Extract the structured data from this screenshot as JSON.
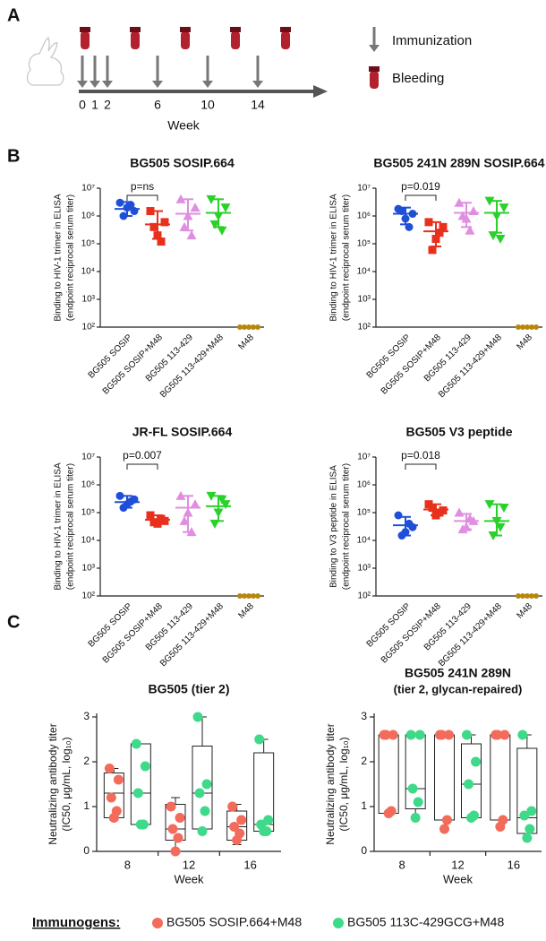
{
  "panel_labels": [
    "A",
    "B",
    "C"
  ],
  "panel_a": {
    "immunization_weeks": [
      0,
      1,
      2,
      6,
      10,
      14
    ],
    "bleeding_weeks": [
      0,
      4,
      8,
      12,
      16
    ],
    "xlabel": "Week",
    "legend": [
      "Immunization",
      "Bleeding"
    ]
  },
  "chart_data": [
    {
      "type": "dot",
      "title": "BG505 SOSIP.664",
      "ylabel": [
        "Binding to HIV-1 trimer in ELISA",
        "(endpoint reciprocal serum titer)"
      ],
      "log_y": true,
      "ylim": [
        100,
        10000000
      ],
      "yticks": [
        {
          "value": 100,
          "label": "10²"
        },
        {
          "value": 1000,
          "label": "10³"
        },
        {
          "value": 10000,
          "label": "10⁴"
        },
        {
          "value": 100000,
          "label": "10⁵"
        },
        {
          "value": 1000000,
          "label": "10⁶"
        },
        {
          "value": 10000000,
          "label": "10⁷"
        }
      ],
      "categories": [
        "BG505 SOSIP",
        "BG505 SOSIP+M48",
        "BG505 113-429",
        "BG505 113-429+M48",
        "M48"
      ],
      "groups": [
        {
          "color": "#1f4fd8",
          "marker": "circle",
          "values": [
            3000000,
            1500000,
            2000000,
            1000000,
            2500000
          ],
          "mean": 1800000,
          "error": [
            1000000,
            3200000
          ]
        },
        {
          "color": "#e8301c",
          "marker": "square",
          "values": [
            1500000,
            600000,
            200000,
            400000,
            120000
          ],
          "mean": 500000,
          "error": [
            150000,
            1500000
          ]
        },
        {
          "color": "#e08ee0",
          "marker": "triangle-up",
          "values": [
            4000000,
            2000000,
            1000000,
            400000,
            200000
          ],
          "mean": 1200000,
          "error": [
            300000,
            4000000
          ]
        },
        {
          "color": "#2bd12b",
          "marker": "triangle-down",
          "values": [
            4000000,
            2000000,
            1000000,
            500000,
            300000
          ],
          "mean": 1300000,
          "error": [
            400000,
            4000000
          ]
        },
        {
          "color": "#b8860b",
          "marker": "circle",
          "values": [
            100,
            100,
            100,
            100,
            100
          ]
        }
      ],
      "annotation": "p=ns"
    },
    {
      "type": "dot",
      "title": "BG505 241N 289N SOSIP.664",
      "ylabel": [
        "Binding to HIV-1 trimer in ELISA",
        "(endpoint reciprocal serum titer)"
      ],
      "log_y": true,
      "ylim": [
        100,
        10000000
      ],
      "yticks": [
        {
          "value": 100,
          "label": "10²"
        },
        {
          "value": 1000,
          "label": "10³"
        },
        {
          "value": 10000,
          "label": "10⁴"
        },
        {
          "value": 100000,
          "label": "10⁵"
        },
        {
          "value": 1000000,
          "label": "10⁶"
        },
        {
          "value": 10000000,
          "label": "10⁷"
        }
      ],
      "categories": [
        "BG505 SOSIP",
        "BG505 SOSIP+M48",
        "BG505 113-429",
        "BG505 113-429+M48",
        "M48"
      ],
      "groups": [
        {
          "color": "#1f4fd8",
          "marker": "circle",
          "values": [
            1800000,
            1200000,
            800000,
            1500000,
            400000
          ],
          "mean": 1200000,
          "error": [
            500000,
            2000000
          ]
        },
        {
          "color": "#e8301c",
          "marker": "square",
          "values": [
            600000,
            400000,
            150000,
            60000,
            250000
          ],
          "mean": 280000,
          "error": [
            80000,
            600000
          ]
        },
        {
          "color": "#e08ee0",
          "marker": "triangle-up",
          "values": [
            3000000,
            1500000,
            800000,
            1000000,
            300000
          ],
          "mean": 1300000,
          "error": [
            400000,
            3000000
          ]
        },
        {
          "color": "#2bd12b",
          "marker": "triangle-down",
          "values": [
            3500000,
            2000000,
            1000000,
            200000,
            150000
          ],
          "mean": 1300000,
          "error": [
            250000,
            3500000
          ]
        },
        {
          "color": "#b8860b",
          "marker": "circle",
          "values": [
            100,
            100,
            100,
            100,
            100
          ]
        }
      ],
      "annotation": "p=0.019"
    },
    {
      "type": "dot",
      "title": "JR-FL SOSIP.664",
      "ylabel": [
        "Binding to HIV-1 trimer in ELISA",
        "(endpoint reciprocal serum titer)"
      ],
      "log_y": true,
      "ylim": [
        100,
        10000000
      ],
      "yticks": [
        {
          "value": 100,
          "label": "10²"
        },
        {
          "value": 1000,
          "label": "10³"
        },
        {
          "value": 10000,
          "label": "10⁴"
        },
        {
          "value": 100000,
          "label": "10⁵"
        },
        {
          "value": 1000000,
          "label": "10⁶"
        },
        {
          "value": 10000000,
          "label": "10⁷"
        }
      ],
      "categories": [
        "BG505 SOSIP",
        "BG505 SOSIP+M48",
        "BG505 113-429",
        "BG505 113-429+M48",
        "M48"
      ],
      "groups": [
        {
          "color": "#1f4fd8",
          "marker": "circle",
          "values": [
            400000,
            300000,
            200000,
            150000,
            250000
          ],
          "mean": 240000,
          "error": [
            150000,
            400000
          ]
        },
        {
          "color": "#e8301c",
          "marker": "square",
          "values": [
            80000,
            50000,
            40000,
            45000,
            60000
          ],
          "mean": 55000,
          "error": [
            40000,
            80000
          ]
        },
        {
          "color": "#e08ee0",
          "marker": "triangle-up",
          "values": [
            400000,
            200000,
            100000,
            50000,
            20000
          ],
          "mean": 150000,
          "error": [
            20000,
            400000
          ]
        },
        {
          "color": "#2bd12b",
          "marker": "triangle-down",
          "values": [
            400000,
            200000,
            100000,
            40000,
            300000
          ],
          "mean": 170000,
          "error": [
            50000,
            400000
          ]
        },
        {
          "color": "#b8860b",
          "marker": "circle",
          "values": [
            100,
            100,
            100,
            100,
            100
          ]
        }
      ],
      "annotation": "p=0.007"
    },
    {
      "type": "dot",
      "title": "BG505 V3 peptide",
      "ylabel": [
        "Binding to V3 peptide in ELISA",
        "(endpoint reciprocal serum titer)"
      ],
      "log_y": true,
      "ylim": [
        100,
        10000000
      ],
      "yticks": [
        {
          "value": 100,
          "label": "10²"
        },
        {
          "value": 1000,
          "label": "10³"
        },
        {
          "value": 10000,
          "label": "10⁴"
        },
        {
          "value": 100000,
          "label": "10⁵"
        },
        {
          "value": 1000000,
          "label": "10⁶"
        },
        {
          "value": 10000000,
          "label": "10⁷"
        }
      ],
      "categories": [
        "BG505 SOSIP",
        "BG505 SOSIP+M48",
        "BG505 113-429",
        "BG505 113-429+M48",
        "M48"
      ],
      "groups": [
        {
          "color": "#1f4fd8",
          "marker": "circle",
          "values": [
            80000,
            30000,
            20000,
            15000,
            40000
          ],
          "mean": 35000,
          "error": [
            15000,
            70000
          ]
        },
        {
          "color": "#e8301c",
          "marker": "square",
          "values": [
            200000,
            120000,
            80000,
            150000,
            100000
          ],
          "mean": 130000,
          "error": [
            80000,
            200000
          ]
        },
        {
          "color": "#e08ee0",
          "marker": "triangle-up",
          "values": [
            100000,
            50000,
            30000,
            25000,
            60000
          ],
          "mean": 50000,
          "error": [
            25000,
            90000
          ]
        },
        {
          "color": "#2bd12b",
          "marker": "triangle-down",
          "values": [
            200000,
            150000,
            50000,
            15000,
            30000
          ],
          "mean": 50000,
          "error": [
            15000,
            200000
          ]
        },
        {
          "color": "#b8860b",
          "marker": "circle",
          "values": [
            100,
            100,
            100,
            100,
            100
          ]
        }
      ],
      "annotation": "p=0.018"
    },
    {
      "type": "box",
      "title": "BG505 (tier 2)",
      "ylabel": [
        "Neutralizing antibody titer",
        "(IC50, μg/mL, log₁₀)"
      ],
      "xlabel": "Week",
      "ylim": [
        0,
        3
      ],
      "yticks": [
        0,
        1,
        2,
        3
      ],
      "categories": [
        "8",
        "12",
        "16"
      ],
      "series": [
        {
          "color": "#f26b5b",
          "values": [
            [
              1.85,
              1.6,
              1.2,
              0.9,
              0.75
            ],
            [
              1.0,
              0.75,
              0.5,
              0.3,
              0.0
            ],
            [
              1.0,
              0.7,
              0.55,
              0.4,
              0.25
            ]
          ],
          "boxes": [
            [
              0.7,
              0.75,
              1.3,
              1.75,
              1.85
            ],
            [
              0,
              0.25,
              0.5,
              1.05,
              1.2
            ],
            [
              0.15,
              0.25,
              0.55,
              0.9,
              1.05
            ]
          ]
        },
        {
          "color": "#3fd98a",
          "values": [
            [
              2.4,
              1.9,
              1.3,
              0.6,
              0.6
            ],
            [
              3.0,
              1.5,
              1.3,
              0.9,
              0.45
            ],
            [
              2.5,
              0.7,
              0.6,
              0.45,
              0.45
            ]
          ],
          "boxes": [
            [
              0.6,
              0.6,
              1.3,
              2.4,
              2.4
            ],
            [
              0.45,
              0.5,
              1.3,
              2.35,
              3.0
            ],
            [
              0.45,
              0.45,
              0.6,
              2.2,
              2.5
            ]
          ]
        }
      ]
    },
    {
      "type": "box",
      "title": "BG505 241N 289N",
      "subtitle": "(tier 2, glycan-repaired)",
      "ylabel": [
        "Neutralizing antibody titer",
        "(IC50, μg/mL, log₁₀)"
      ],
      "xlabel": "Week",
      "ylim": [
        0,
        3
      ],
      "yticks": [
        0,
        1,
        2,
        3
      ],
      "categories": [
        "8",
        "12",
        "16"
      ],
      "series": [
        {
          "color": "#f26b5b",
          "values": [
            [
              2.6,
              2.6,
              2.6,
              0.9,
              0.85
            ],
            [
              2.6,
              2.6,
              2.6,
              0.7,
              0.5
            ],
            [
              2.6,
              2.6,
              2.6,
              0.7,
              0.55
            ]
          ],
          "boxes": [
            [
              0.85,
              0.85,
              2.6,
              2.6,
              2.6
            ],
            [
              0.5,
              0.7,
              2.6,
              2.6,
              2.6
            ],
            [
              0.55,
              0.7,
              2.6,
              2.6,
              2.6
            ]
          ]
        },
        {
          "color": "#3fd98a",
          "values": [
            [
              2.6,
              2.6,
              1.4,
              1.1,
              0.75
            ],
            [
              2.6,
              2.0,
              1.5,
              0.8,
              0.75
            ],
            [
              2.6,
              0.9,
              0.8,
              0.5,
              0.3
            ]
          ],
          "boxes": [
            [
              0.75,
              0.95,
              1.4,
              2.6,
              2.6
            ],
            [
              0.75,
              0.75,
              1.5,
              2.4,
              2.6
            ],
            [
              0.3,
              0.4,
              0.75,
              2.3,
              2.6
            ]
          ]
        }
      ]
    }
  ],
  "legend": {
    "title": "Immunogens:",
    "items": [
      {
        "name": "BG505 SOSIP.664+M48",
        "color": "#f26b5b"
      },
      {
        "name": "BG505 113C-429GCG+M48",
        "color": "#3fd98a"
      }
    ]
  }
}
